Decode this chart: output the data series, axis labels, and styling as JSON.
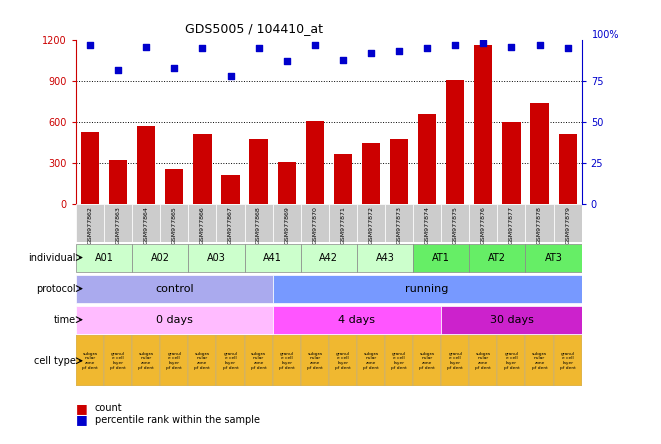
{
  "title": "GDS5005 / 104410_at",
  "samples": [
    "GSM977862",
    "GSM977863",
    "GSM977864",
    "GSM977865",
    "GSM977866",
    "GSM977867",
    "GSM977868",
    "GSM977869",
    "GSM977870",
    "GSM977871",
    "GSM977872",
    "GSM977873",
    "GSM977874",
    "GSM977875",
    "GSM977876",
    "GSM977877",
    "GSM977878",
    "GSM977879"
  ],
  "bar_values": [
    530,
    320,
    570,
    255,
    510,
    215,
    475,
    305,
    610,
    370,
    450,
    480,
    660,
    910,
    1160,
    600,
    740,
    510
  ],
  "dot_values_pct": [
    97,
    82,
    96,
    83,
    95,
    78,
    95,
    87,
    97,
    88,
    92,
    93,
    95,
    97,
    98,
    96,
    97,
    95
  ],
  "bar_color": "#cc0000",
  "dot_color": "#0000cc",
  "ylim_left": [
    0,
    1200
  ],
  "ylim_right": [
    0,
    100
  ],
  "yticks_left": [
    0,
    300,
    600,
    900,
    1200
  ],
  "yticks_right": [
    0,
    25,
    50,
    75,
    100
  ],
  "sample_bg_color": "#cccccc",
  "ind_map": [
    [
      0,
      2,
      "A01"
    ],
    [
      2,
      4,
      "A02"
    ],
    [
      4,
      6,
      "A03"
    ],
    [
      6,
      8,
      "A41"
    ],
    [
      8,
      10,
      "A42"
    ],
    [
      10,
      12,
      "A43"
    ],
    [
      12,
      14,
      "AT1"
    ],
    [
      14,
      16,
      "AT2"
    ],
    [
      16,
      18,
      "AT3"
    ]
  ],
  "ind_colors_light": "#ccffcc",
  "ind_colors_dark": "#66ee66",
  "protocol_data": [
    [
      0,
      7,
      "control",
      "#aaaaee"
    ],
    [
      7,
      18,
      "running",
      "#7799ff"
    ]
  ],
  "time_data": [
    [
      0,
      7,
      "0 days",
      "#ffbbff"
    ],
    [
      7,
      13,
      "4 days",
      "#ff55ff"
    ],
    [
      13,
      18,
      "30 days",
      "#cc22cc"
    ]
  ],
  "cell_color_odd": "#f5c518",
  "cell_color_even": "#f5c518",
  "bg_color": "#ffffff",
  "grid_dotted_color": "#000000"
}
